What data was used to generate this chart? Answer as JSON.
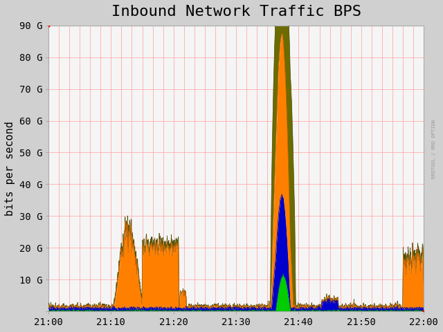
{
  "title": "Inbound Network Traffic BPS",
  "ylabel": "bits per second",
  "xlabel": "",
  "ytick_labels": [
    "",
    "10 G",
    "20 G",
    "30 G",
    "40 G",
    "50 G",
    "60 G",
    "70 G",
    "80 G",
    "90 G"
  ],
  "ytick_values": [
    0,
    10,
    20,
    30,
    40,
    50,
    60,
    70,
    80,
    90
  ],
  "xtick_labels": [
    "21:00",
    "21:10",
    "21:20",
    "21:30",
    "21:40",
    "21:50",
    "22:00"
  ],
  "xtick_values": [
    0,
    60,
    120,
    180,
    240,
    300,
    360
  ],
  "xlim": [
    0,
    360
  ],
  "ylim": [
    0,
    90
  ],
  "bg_color": "#e8e8e8",
  "plot_bg_color": "#f0f0f0",
  "grid_color_major": "#ff9999",
  "grid_color_minor": "#ffffff",
  "colors": {
    "orange": "#ff8000",
    "olive": "#808000",
    "blue": "#0000cc",
    "green": "#00cc00",
    "red": "#cc0000"
  },
  "title_fontsize": 16,
  "axis_label_fontsize": 11,
  "tick_fontsize": 10,
  "watermark": "RRDTOOL / RRD OPTION",
  "watermark2": "RRDTOOL / RRD OPTION"
}
